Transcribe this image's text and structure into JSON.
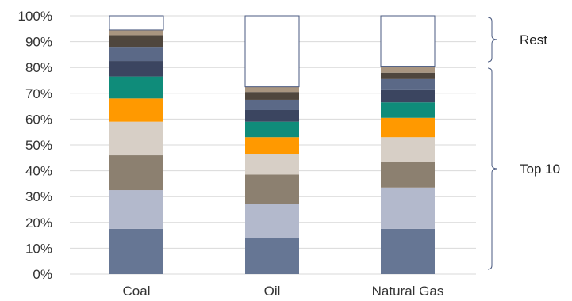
{
  "chart_data": {
    "type": "bar",
    "stacked": true,
    "categories": [
      "Coal",
      "Oil",
      "Natural Gas"
    ],
    "ylim": [
      0,
      1
    ],
    "yticks": [
      "0%",
      "10%",
      "20%",
      "30%",
      "40%",
      "50%",
      "60%",
      "70%",
      "80%",
      "90%",
      "100%"
    ],
    "grid": true,
    "series": [
      {
        "values": [
          0.175,
          0.14,
          0.175
        ],
        "color": "#667694"
      },
      {
        "values": [
          0.15,
          0.13,
          0.16
        ],
        "color": "#b3b9cc"
      },
      {
        "values": [
          0.135,
          0.115,
          0.1
        ],
        "color": "#8c8070"
      },
      {
        "values": [
          0.13,
          0.08,
          0.095
        ],
        "color": "#d7cfc6"
      },
      {
        "values": [
          0.09,
          0.065,
          0.075
        ],
        "color": "#ff9900"
      },
      {
        "values": [
          0.085,
          0.06,
          0.06
        ],
        "color": "#0f8c7a"
      },
      {
        "values": [
          0.06,
          0.045,
          0.05
        ],
        "color": "#3b4560"
      },
      {
        "values": [
          0.055,
          0.04,
          0.04
        ],
        "color": "#5b6987"
      },
      {
        "values": [
          0.045,
          0.03,
          0.025
        ],
        "color": "#4f463d"
      },
      {
        "values": [
          0.02,
          0.02,
          0.025
        ],
        "color": "#a89580"
      },
      {
        "values": [
          0.055,
          0.275,
          0.195
        ],
        "color": "#ffffff",
        "outline": "#4a5a80"
      }
    ],
    "annotations": [
      {
        "text": "Rest",
        "applies_to": "rest"
      },
      {
        "text": "Top 10",
        "applies_to": "top10"
      }
    ]
  }
}
